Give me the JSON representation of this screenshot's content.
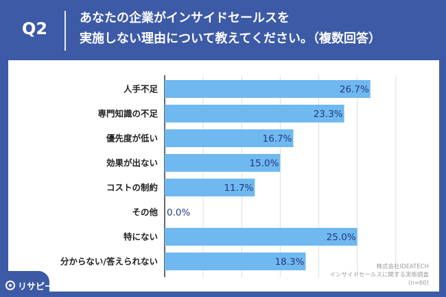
{
  "header": {
    "q_label": "Q2",
    "question_line1": "あなたの企業がインサイドセールスを",
    "question_line2": "実施しない理由について教えてください。（複数回答）"
  },
  "chart_data": {
    "type": "bar",
    "orientation": "horizontal",
    "categories": [
      "人手不足",
      "専門知識の不足",
      "優先度が低い",
      "効果が出ない",
      "コストの制約",
      "その他",
      "特にない",
      "分からない/答えられない"
    ],
    "values": [
      26.7,
      23.3,
      16.7,
      15.0,
      11.7,
      0.0,
      25.0,
      18.3
    ],
    "value_labels": [
      "26.7%",
      "23.3%",
      "16.7%",
      "15.0%",
      "11.7%",
      "0.0%",
      "25.0%",
      "18.3%"
    ],
    "xlim": [
      0,
      30
    ],
    "grid": true,
    "bar_color": "#6fb8f0"
  },
  "footer": {
    "line1": "株式会社IDEATECH",
    "line2": "インサイドセールスに関する実態調査",
    "line3": "(n=60)"
  },
  "logo": {
    "text": "リサピー",
    "icon": "logo-circle-icon"
  },
  "colors": {
    "background": "#3d5aa6",
    "panel": "#ffffff",
    "bar": "#6fb8f0",
    "grid": "#dddddd"
  }
}
